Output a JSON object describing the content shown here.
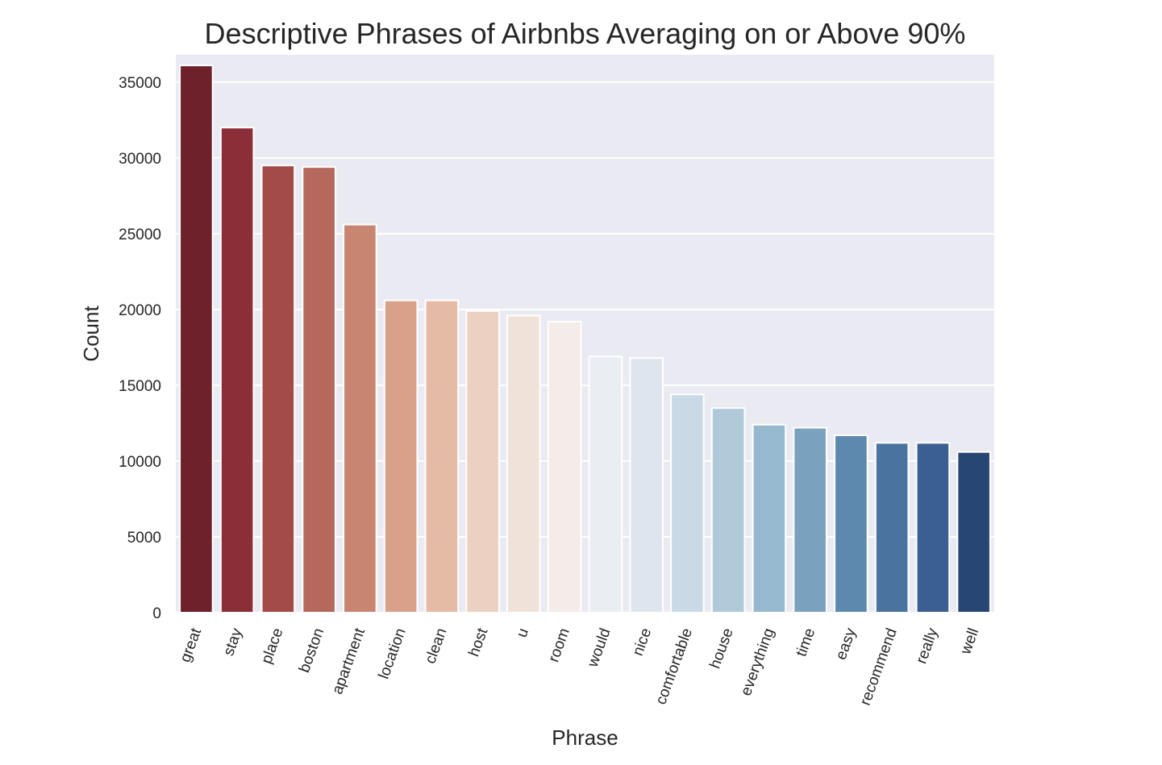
{
  "chart_data": {
    "type": "bar",
    "title": "Descriptive Phrases of Airbnbs Averaging on or Above 90%",
    "xlabel": "Phrase",
    "ylabel": "Count",
    "categories": [
      "great",
      "stay",
      "place",
      "boston",
      "apartment",
      "location",
      "clean",
      "host",
      "u",
      "room",
      "would",
      "nice",
      "comfortable",
      "house",
      "everything",
      "time",
      "easy",
      "recommend",
      "really",
      "well"
    ],
    "values": [
      36100,
      32000,
      29500,
      29400,
      25600,
      20600,
      20600,
      19900,
      19600,
      19200,
      16900,
      16800,
      14400,
      13500,
      12400,
      12200,
      11700,
      11200,
      11200,
      10600
    ],
    "ylim": [
      0,
      36800
    ],
    "yticks": [
      0,
      5000,
      10000,
      15000,
      20000,
      25000,
      30000,
      35000
    ],
    "grid": true,
    "legend": "none",
    "colors": [
      "#6e202b",
      "#8c2e38",
      "#a34b48",
      "#b6685c",
      "#c88571",
      "#d9a189",
      "#e5bba6",
      "#ecd0c1",
      "#f1e2d9",
      "#f3ece8",
      "#eaeef3",
      "#dde6ee",
      "#c9dae6",
      "#b0c9d9",
      "#97b9cf",
      "#7aa1be",
      "#5c89ad",
      "#4a73a0",
      "#3c5f93",
      "#284673"
    ],
    "background": "#eaeaf2"
  }
}
